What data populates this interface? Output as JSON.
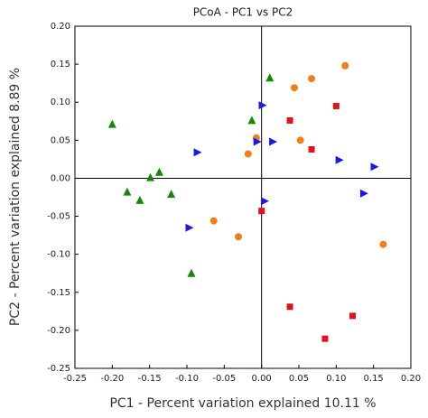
{
  "chart_data": {
    "type": "scatter",
    "title": "PCoA - PC1 vs PC2",
    "x_label": "PC1 - Percent variation explained 10.11 %",
    "y_label": "PC2 - Percent variation explained 8.89 %",
    "xlim": [
      -0.25,
      0.2
    ],
    "ylim": [
      -0.25,
      0.2
    ],
    "xticks": [
      {
        "value": -0.25,
        "label": "-0.25"
      },
      {
        "value": -0.2,
        "label": "-0.20"
      },
      {
        "value": -0.15,
        "label": "-0.15"
      },
      {
        "value": -0.1,
        "label": "-0.10"
      },
      {
        "value": -0.05,
        "label": "-0.05"
      },
      {
        "value": 0,
        "label": "0.00"
      },
      {
        "value": 0.05,
        "label": "0.05"
      },
      {
        "value": 0.1,
        "label": "0.10"
      },
      {
        "value": 0.15,
        "label": "0.15"
      },
      {
        "value": 0.2,
        "label": "0.20"
      }
    ],
    "yticks": [
      {
        "value": -0.25,
        "label": "-0.25"
      },
      {
        "value": -0.2,
        "label": "-0.20"
      },
      {
        "value": -0.15,
        "label": "-0.15"
      },
      {
        "value": -0.1,
        "label": "-0.10"
      },
      {
        "value": -0.05,
        "label": "-0.05"
      },
      {
        "value": 0,
        "label": "0.00"
      },
      {
        "value": 0.05,
        "label": "0.05"
      },
      {
        "value": 0.1,
        "label": "0.10"
      },
      {
        "value": 0.15,
        "label": "0.15"
      },
      {
        "value": 0.2,
        "label": "0.20"
      }
    ],
    "zero_lines": true,
    "series": [
      {
        "color": "#138a07",
        "marker": "triangle-up",
        "x": [
          -0.2,
          0.011,
          -0.013,
          -0.137,
          -0.149,
          -0.18,
          -0.163,
          -0.121,
          -0.094
        ],
        "values": [
          0.071,
          0.132,
          0.076,
          0.008,
          0.001,
          -0.018,
          -0.029,
          -0.021,
          -0.125
        ]
      },
      {
        "color": "#f07f1a",
        "marker": "circle",
        "x": [
          0.112,
          0.067,
          0.044,
          -0.007,
          -0.018,
          0.052,
          -0.064,
          -0.031,
          0.163
        ],
        "values": [
          0.148,
          0.131,
          0.119,
          0.053,
          0.032,
          0.05,
          -0.056,
          -0.077,
          -0.087
        ]
      },
      {
        "color": "#e3111b",
        "marker": "square",
        "x": [
          0.1,
          0.038,
          0.067,
          0.0,
          0.038,
          0.122,
          0.085
        ],
        "values": [
          0.095,
          0.076,
          0.038,
          -0.043,
          -0.169,
          -0.181,
          -0.211
        ]
      },
      {
        "color": "#1a1ae6",
        "marker": "triangle-right",
        "x": [
          0.001,
          -0.086,
          -0.006,
          0.015,
          0.104,
          0.151,
          0.137,
          0.004,
          -0.097
        ],
        "values": [
          0.096,
          0.034,
          0.048,
          0.048,
          0.024,
          0.015,
          -0.02,
          -0.03,
          -0.065
        ]
      }
    ]
  }
}
